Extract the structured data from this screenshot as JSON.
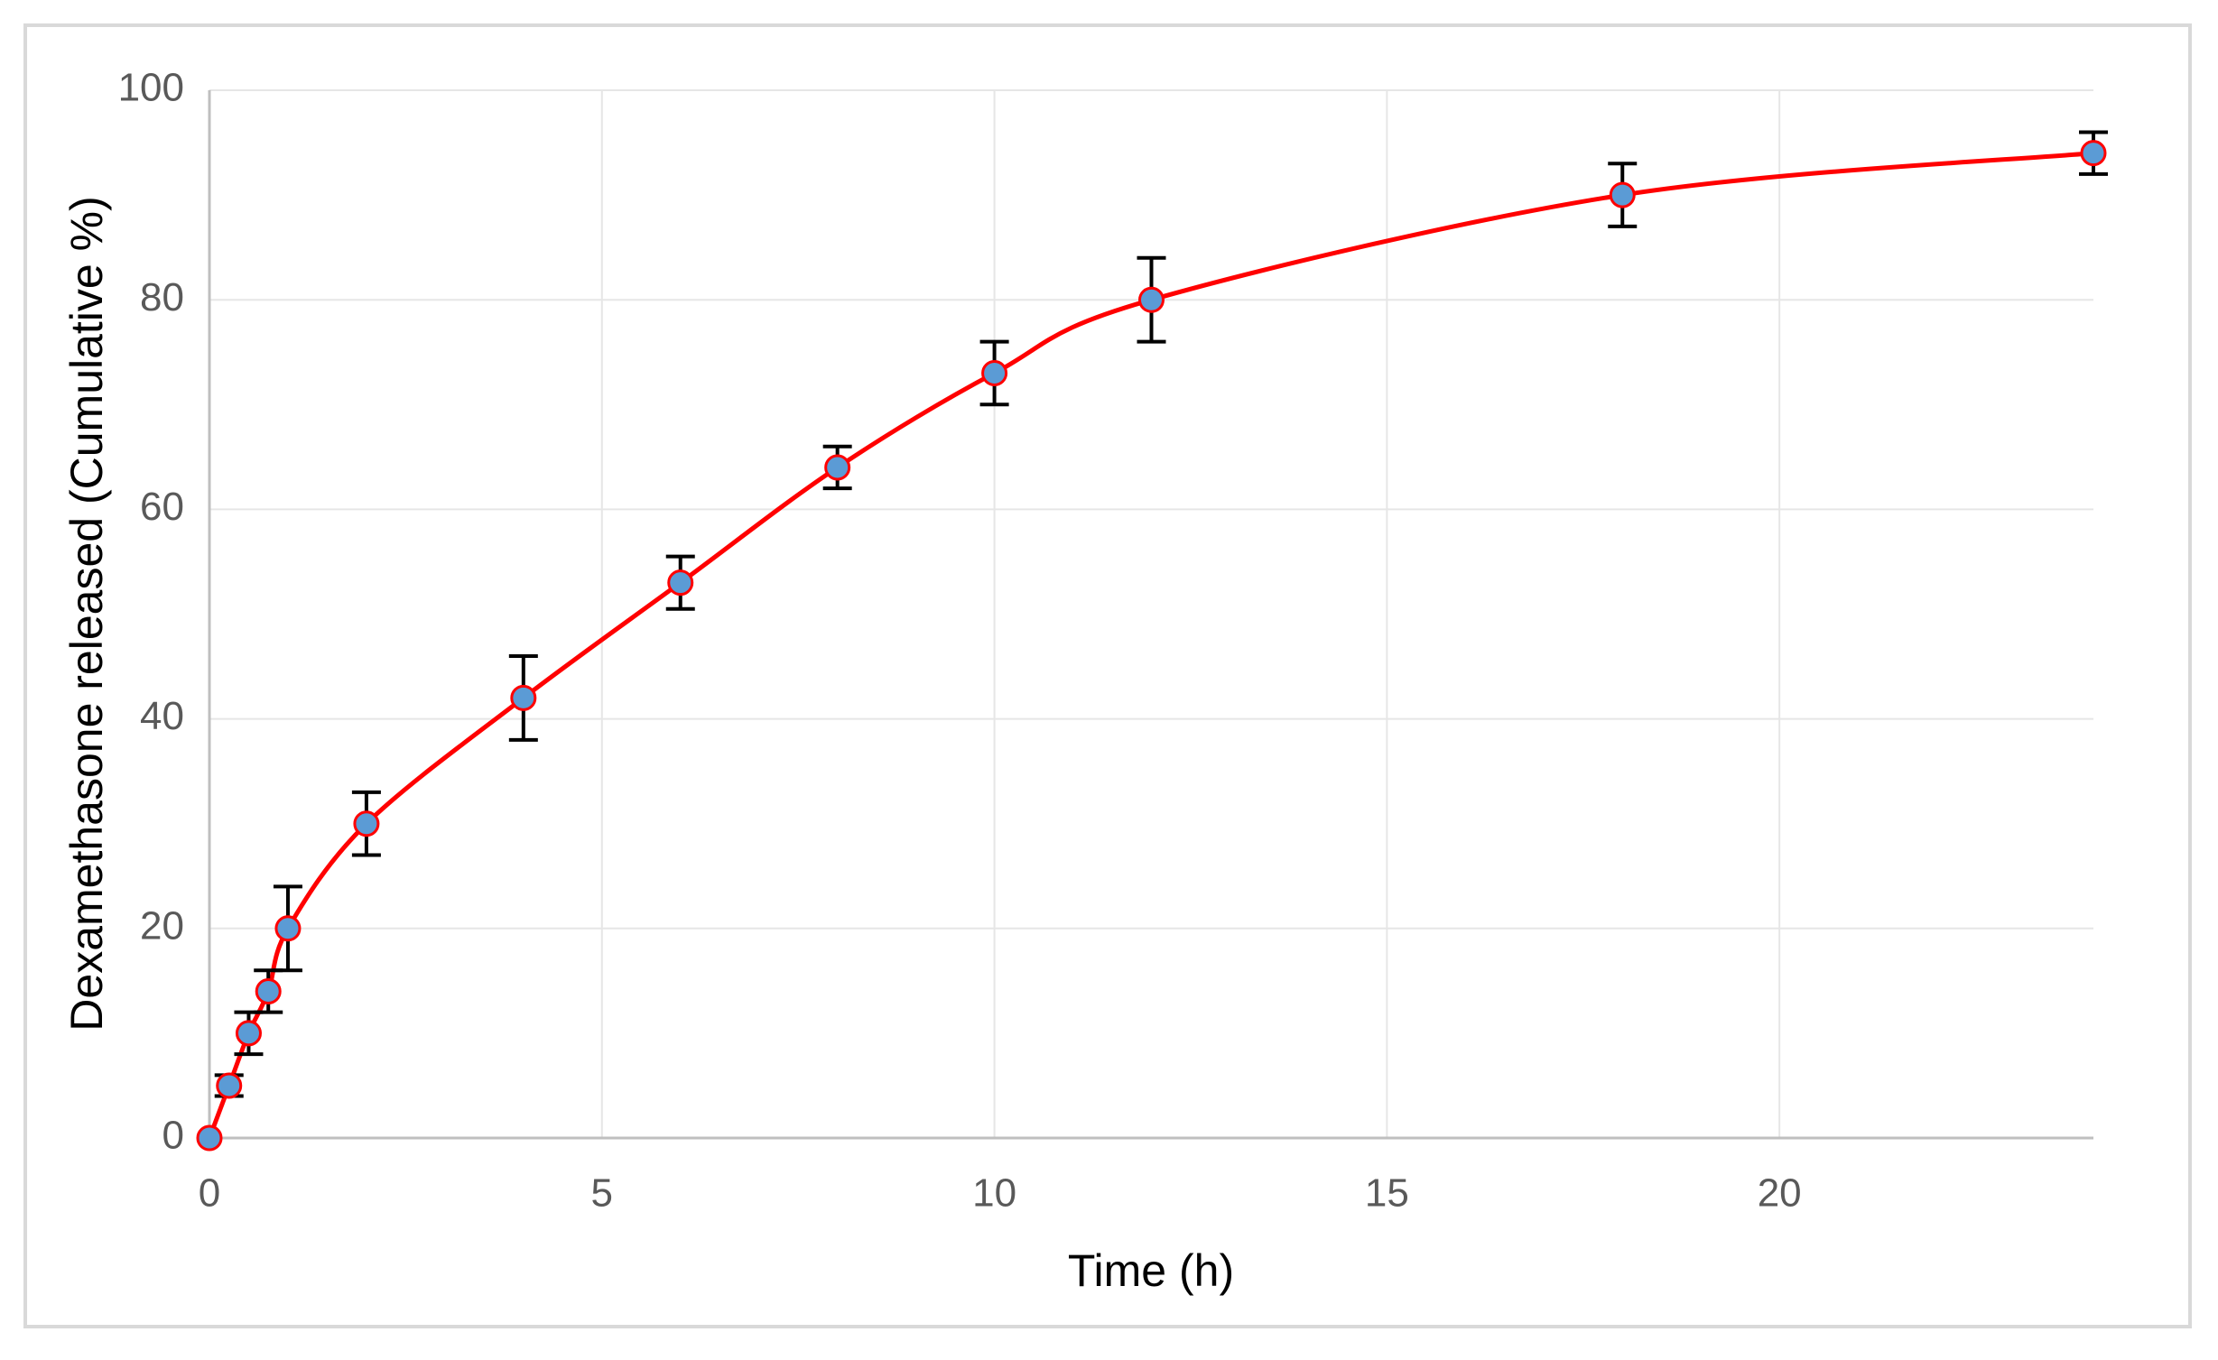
{
  "chart_data": {
    "type": "line",
    "x_label": "Time (h)",
    "y_label": "Dexamethasone released (Cumulative %)",
    "x": [
      0,
      0.25,
      0.5,
      0.75,
      1,
      2,
      4,
      6,
      8,
      10,
      12,
      18,
      24
    ],
    "series": [
      {
        "color": "#ff0000",
        "marker_color": "#5b9bd5",
        "values": [
          0,
          5,
          10,
          14,
          20,
          30,
          42,
          53,
          64,
          73,
          80,
          90,
          94
        ],
        "errors": [
          0,
          1,
          2,
          2,
          4,
          3,
          4,
          2.5,
          2,
          3,
          4,
          3,
          2
        ]
      }
    ],
    "xlim": [
      0,
      24
    ],
    "xticks": [
      0,
      5,
      10,
      15,
      20
    ],
    "ylim": [
      0,
      100
    ],
    "yticks": [
      0,
      20,
      40,
      60,
      80,
      100
    ],
    "grid": true,
    "smooth": true
  }
}
